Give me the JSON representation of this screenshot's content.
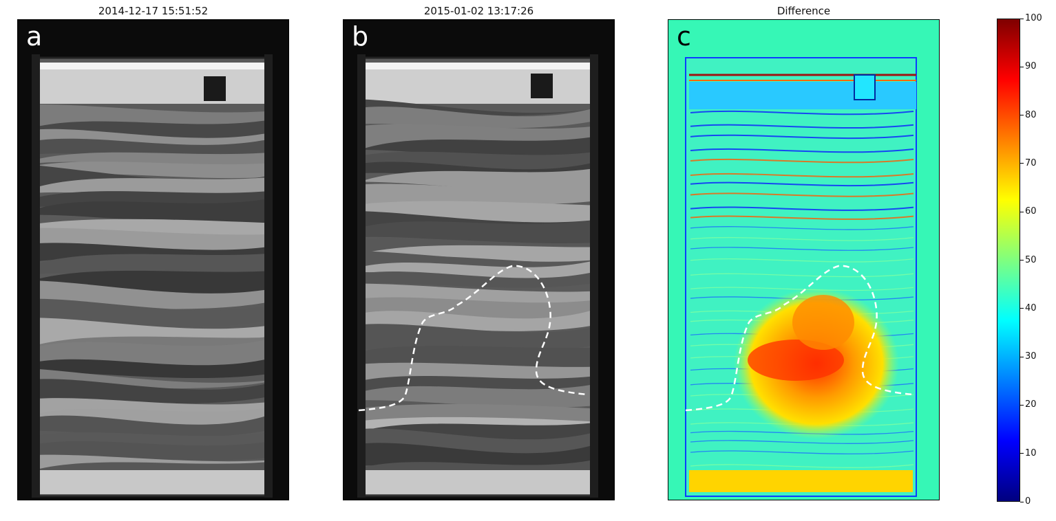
{
  "panels": [
    {
      "letter": "a",
      "title": "2014-12-17 15:51:52"
    },
    {
      "letter": "b",
      "title": "2015-01-02 13:17:26"
    },
    {
      "letter": "c",
      "title": "Difference"
    }
  ],
  "colorbar": {
    "min": 0,
    "max": 100,
    "ticks": [
      "0",
      "10",
      "20",
      "30",
      "40",
      "50",
      "60",
      "70",
      "80",
      "90",
      "100"
    ],
    "colormap": "jet",
    "colors": [
      "#00007f",
      "#0000ff",
      "#007fff",
      "#00ffff",
      "#7fff7f",
      "#ffff00",
      "#ff7f00",
      "#ff0000",
      "#7f0000"
    ]
  },
  "colors": {
    "frame": "#111111",
    "background_diff": "#36f7b6",
    "boundary": "#ffffff"
  }
}
